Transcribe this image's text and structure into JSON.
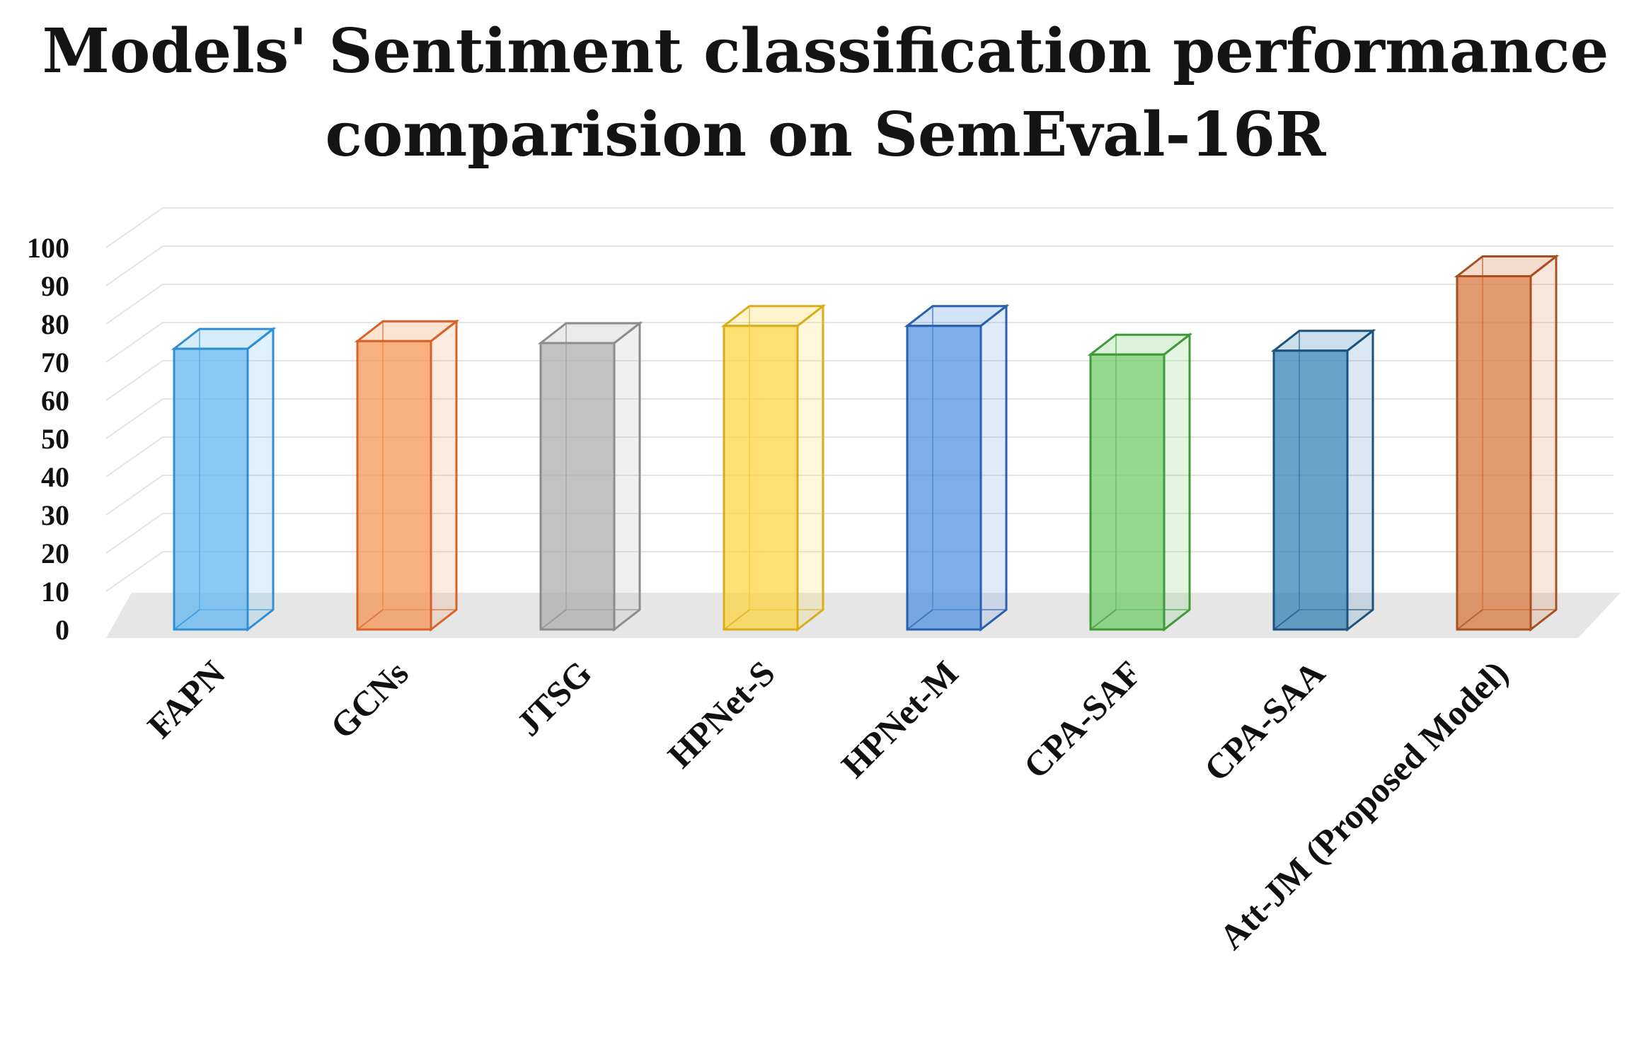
{
  "chart_data": {
    "type": "bar",
    "title_lines": [
      "Models' Sentiment classification performance",
      "comparision on SemEval-16R"
    ],
    "categories": [
      "FAPN",
      "GCNs",
      "JTSG",
      "HPNet-S",
      "HPNet-M",
      "CPA-SAF",
      "CPA-SAA",
      "Att-JM (Proposed Model)"
    ],
    "values": [
      73.5,
      75.5,
      75,
      79.5,
      79.5,
      72,
      73,
      92.5
    ],
    "colors": [
      "#5BB4F0",
      "#F7914D",
      "#ABABAB",
      "#FFD23B",
      "#4C8FE2",
      "#6BCB62",
      "#2E7EB4",
      "#D8733A"
    ],
    "edge_colors": [
      "#2E8FD6",
      "#D9622A",
      "#8C8C8C",
      "#D9AE1A",
      "#2A5FB0",
      "#3E9A38",
      "#1C527D",
      "#A84F20"
    ],
    "xlabel": "",
    "ylabel": "",
    "yticks": [
      0,
      10,
      20,
      30,
      40,
      50,
      60,
      70,
      80,
      90,
      100
    ],
    "ylim": [
      0,
      100
    ],
    "grid": true,
    "legend": "none",
    "style": "3d-bars"
  }
}
